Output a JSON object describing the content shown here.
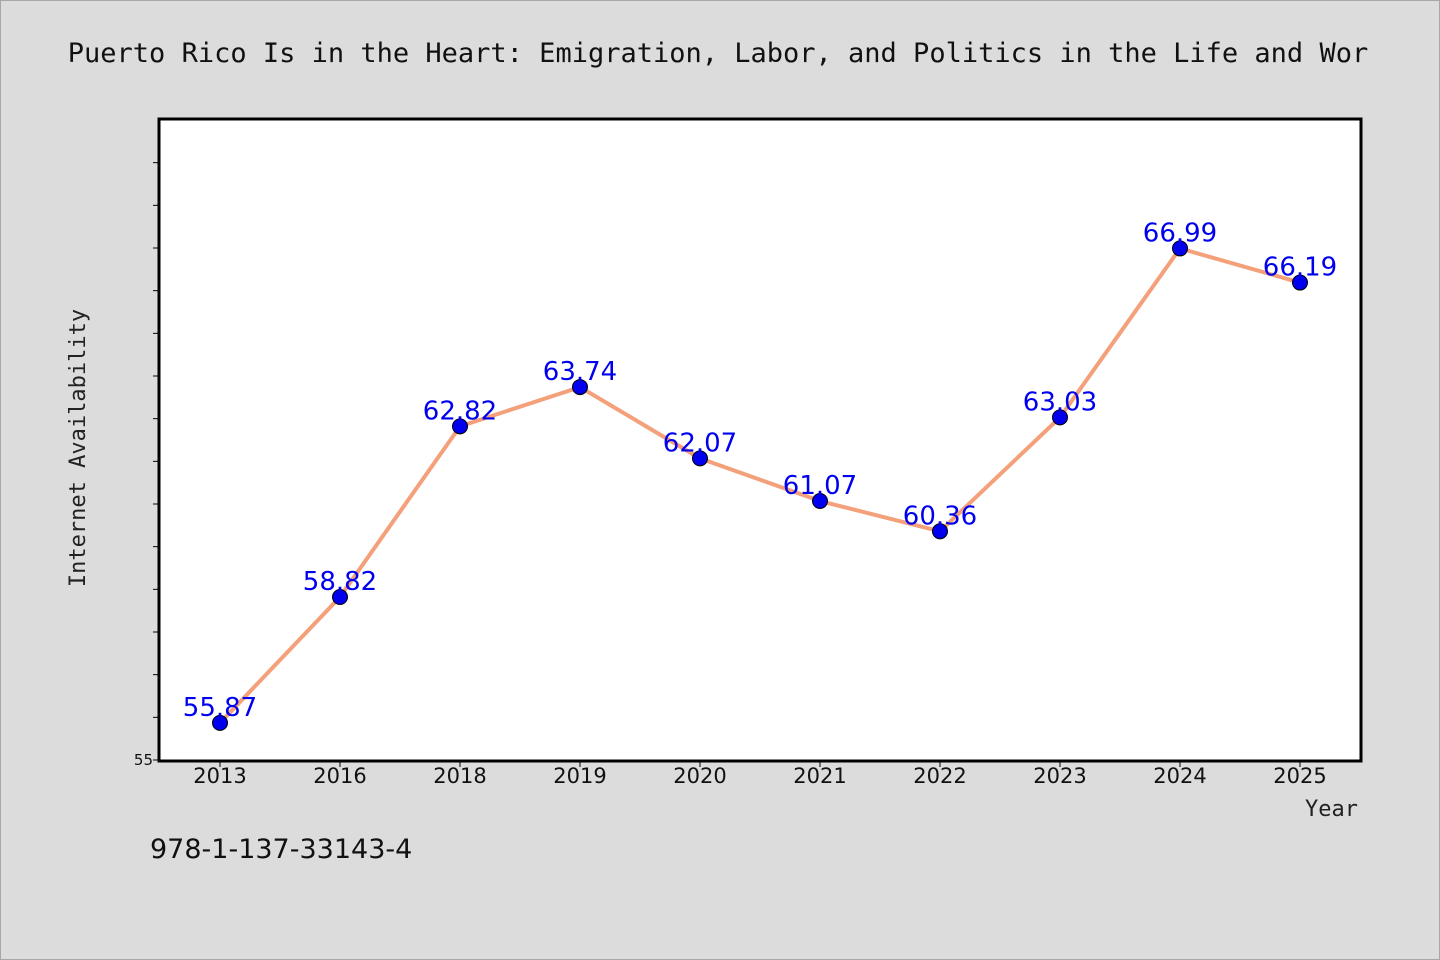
{
  "chart_data": {
    "type": "line",
    "title": "Puerto Rico Is in the Heart: Emigration, Labor, and Politics in the Life and Wor",
    "xlabel": "Year",
    "ylabel": "Internet Availability",
    "categories": [
      "2013",
      "2016",
      "2018",
      "2019",
      "2020",
      "2021",
      "2022",
      "2023",
      "2024",
      "2025"
    ],
    "values": [
      55.87,
      58.82,
      62.82,
      63.74,
      62.07,
      61.07,
      60.36,
      63.03,
      66.99,
      66.19
    ],
    "data_labels": [
      "55.87",
      "58.82",
      "62.82",
      "63.74",
      "62.07",
      "61.07",
      "60.36",
      "63.03",
      "66.99",
      "66.19"
    ],
    "ylim": [
      55,
      70
    ],
    "ytick_labels": [
      "55"
    ],
    "line_color": "#f4a07a",
    "marker_color": "#0000ee",
    "label_color": "#0000ee",
    "grid": false,
    "legend": "none"
  },
  "footer": {
    "isbn": "978-1-137-33143-4"
  }
}
